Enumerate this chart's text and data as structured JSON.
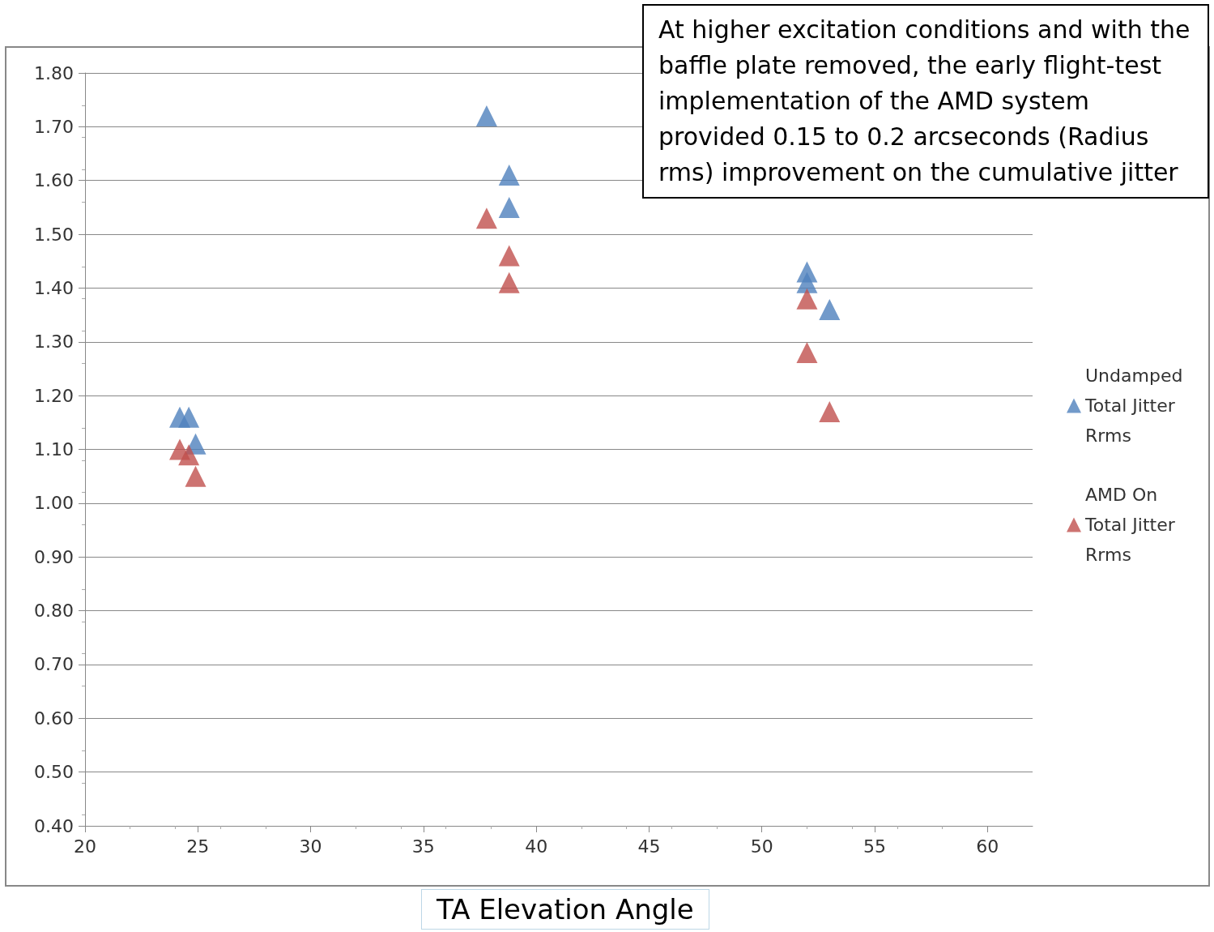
{
  "chart_data": {
    "type": "scatter",
    "xlabel": "TA Elevation Angle",
    "annotations": [
      "At higher excitation conditions and with the baffle plate removed, the early flight-test implementation of the AMD system provided 0.15 to 0.2 arcseconds (Radius rms) improvement on the cumulative jitter"
    ],
    "xlim": [
      20,
      62
    ],
    "xticks": [
      20,
      25,
      30,
      35,
      40,
      45,
      50,
      55,
      60
    ],
    "ylim": [
      0.4,
      1.8
    ],
    "yticks": [
      {
        "value": 0.4,
        "label": "0.40"
      },
      {
        "value": 0.5,
        "label": "0.50"
      },
      {
        "value": 0.6,
        "label": "0.60"
      },
      {
        "value": 0.7,
        "label": "0.70"
      },
      {
        "value": 0.8,
        "label": "0.80"
      },
      {
        "value": 0.9,
        "label": "0.90"
      },
      {
        "value": 1.0,
        "label": "1.00"
      },
      {
        "value": 1.1,
        "label": "1.10"
      },
      {
        "value": 1.2,
        "label": "1.20"
      },
      {
        "value": 1.3,
        "label": "1.30"
      },
      {
        "value": 1.4,
        "label": "1.40"
      },
      {
        "value": 1.5,
        "label": "1.50"
      },
      {
        "value": 1.6,
        "label": "1.60"
      },
      {
        "value": 1.7,
        "label": "1.70"
      },
      {
        "value": 1.8,
        "label": "1.80"
      }
    ],
    "grid": "y",
    "legend": "right",
    "marker": "triangle",
    "series": [
      {
        "name": "Undamped Total Jitter Rrms",
        "color": "#4f81bd",
        "x": [
          24.2,
          24.6,
          24.9,
          37.8,
          38.8,
          38.8,
          52.0,
          52.0,
          53.0
        ],
        "values": [
          1.16,
          1.16,
          1.11,
          1.72,
          1.61,
          1.55,
          1.43,
          1.41,
          1.36
        ]
      },
      {
        "name": "AMD On Total Jitter Rrms",
        "color": "#c0504d",
        "x": [
          24.2,
          24.6,
          24.9,
          37.8,
          38.8,
          38.8,
          52.0,
          52.0,
          53.0
        ],
        "values": [
          1.1,
          1.09,
          1.05,
          1.53,
          1.46,
          1.41,
          1.38,
          1.28,
          1.17
        ]
      }
    ]
  }
}
